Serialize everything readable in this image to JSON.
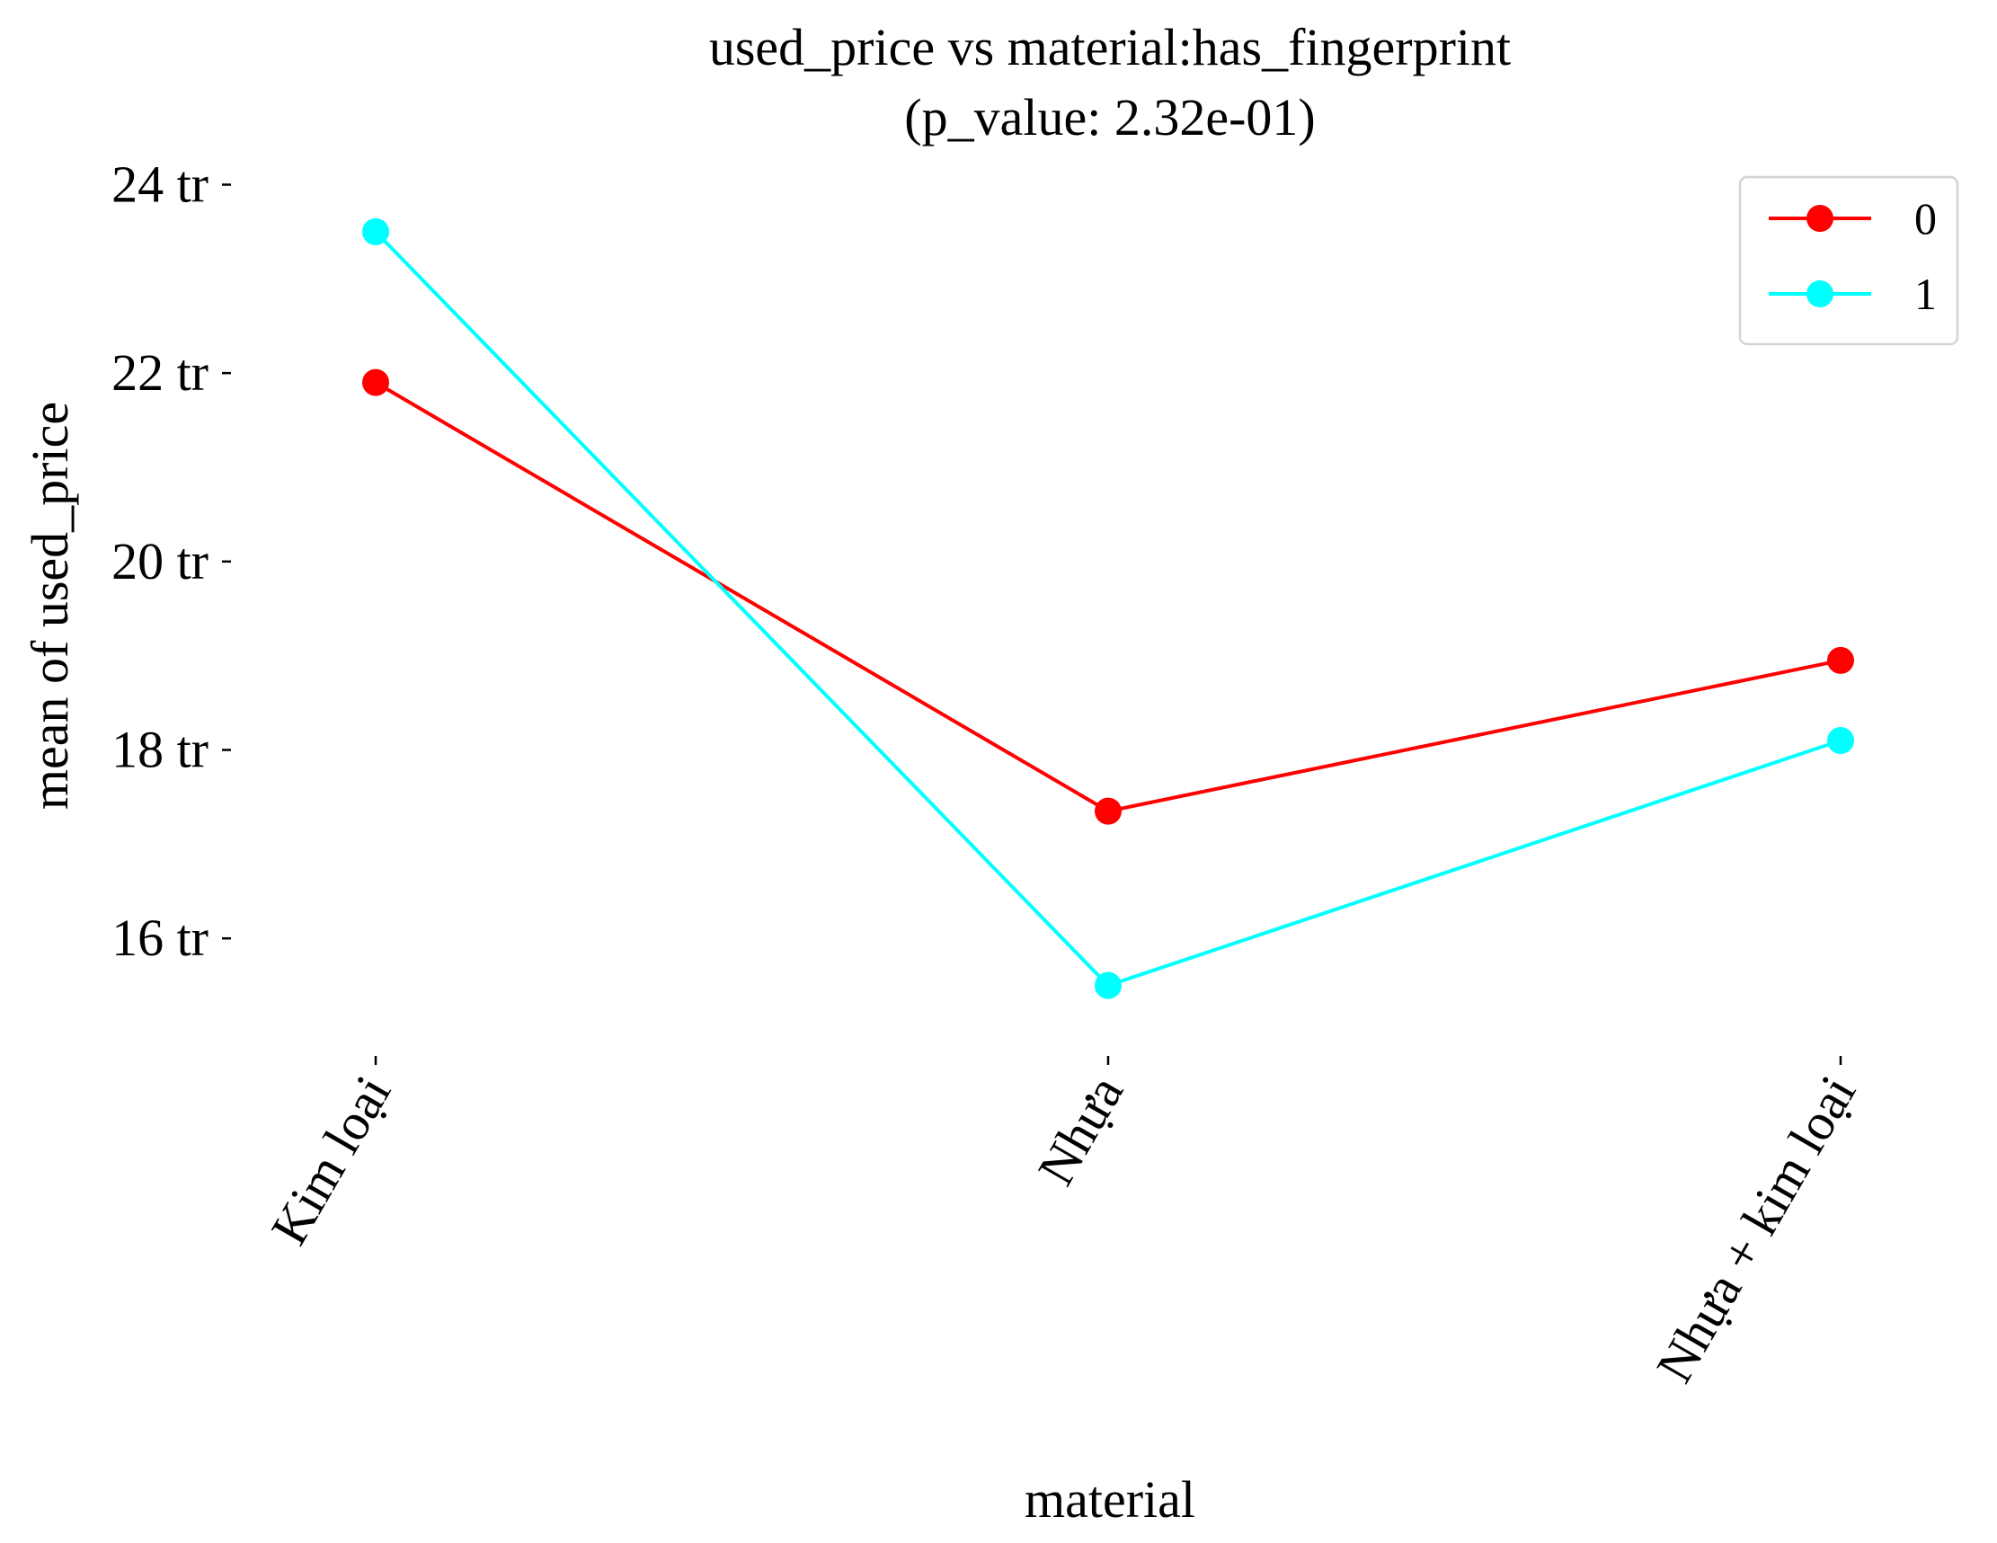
{
  "chart_data": {
    "type": "line",
    "title": "used_price vs material:has_fingerprint",
    "subtitle": "(p_value: 2.32e-01)",
    "xlabel": "material",
    "ylabel": "mean of used_price",
    "categories": [
      "Kim loại",
      "Nhựa",
      "Nhựa + kim loại"
    ],
    "y_ticks": [
      16,
      18,
      20,
      22,
      24
    ],
    "y_tick_labels": [
      "16 tr",
      "18 tr",
      "20 tr",
      "22 tr",
      "24 tr"
    ],
    "ylim": [
      14.8,
      24.1
    ],
    "grid": false,
    "legend_position": "top-right",
    "series": [
      {
        "name": "0",
        "color": "#ff0000",
        "values": [
          21.9,
          17.35,
          18.95
        ]
      },
      {
        "name": "1",
        "color": "#00ffff",
        "values": [
          23.5,
          15.5,
          18.1
        ]
      }
    ]
  }
}
